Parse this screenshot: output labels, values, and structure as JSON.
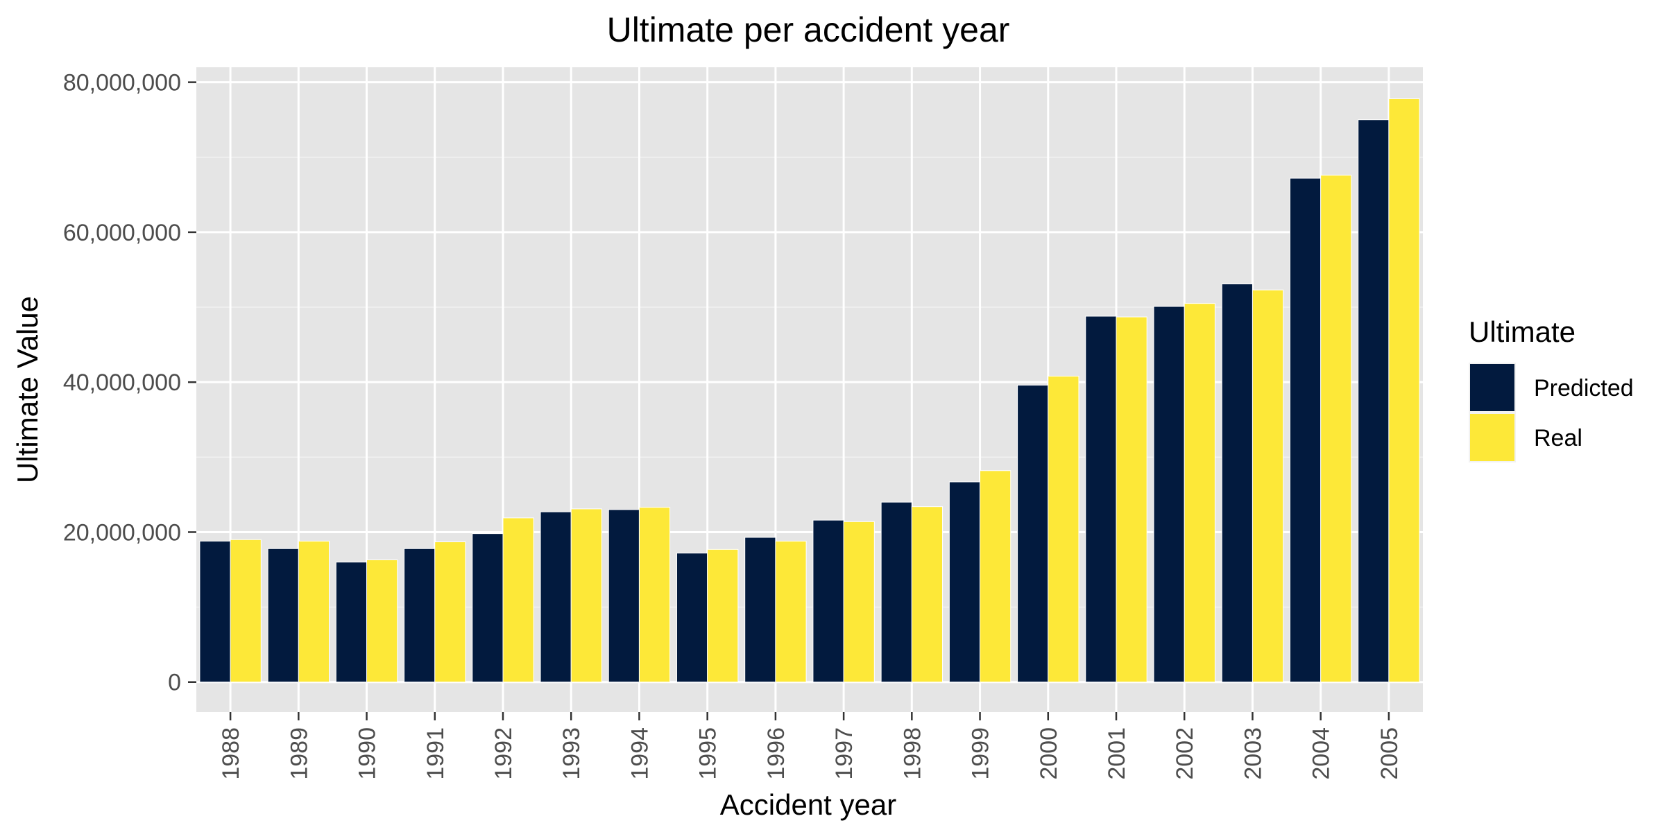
{
  "chart_data": {
    "type": "bar",
    "title": "Ultimate per accident year",
    "xlabel": "Accident year",
    "ylabel": "Ultimate Value",
    "categories": [
      "1988",
      "1989",
      "1990",
      "1991",
      "1992",
      "1993",
      "1994",
      "1995",
      "1996",
      "1997",
      "1998",
      "1999",
      "2000",
      "2001",
      "2002",
      "2003",
      "2004",
      "2005"
    ],
    "series": [
      {
        "name": "Predicted",
        "color": "#021a3e",
        "values": [
          18800000,
          17800000,
          16000000,
          17800000,
          19800000,
          22700000,
          23000000,
          17200000,
          19300000,
          21600000,
          24000000,
          26700000,
          39600000,
          48800000,
          50100000,
          53100000,
          67200000,
          75000000
        ]
      },
      {
        "name": "Real",
        "color": "#fde838",
        "values": [
          19000000,
          18800000,
          16300000,
          18700000,
          21900000,
          23100000,
          23300000,
          17700000,
          18800000,
          21400000,
          23400000,
          28200000,
          40800000,
          48700000,
          50500000,
          52300000,
          67600000,
          77800000
        ]
      }
    ],
    "ylim": [
      -4000000,
      82000000
    ],
    "yticks": [
      0,
      20000000,
      40000000,
      60000000,
      80000000
    ],
    "ytick_labels": [
      "0",
      "20,000,000",
      "40,000,000",
      "60,000,000",
      "80,000,000"
    ],
    "grid": true,
    "legend": {
      "title": "Ultimate",
      "position": "right"
    }
  }
}
